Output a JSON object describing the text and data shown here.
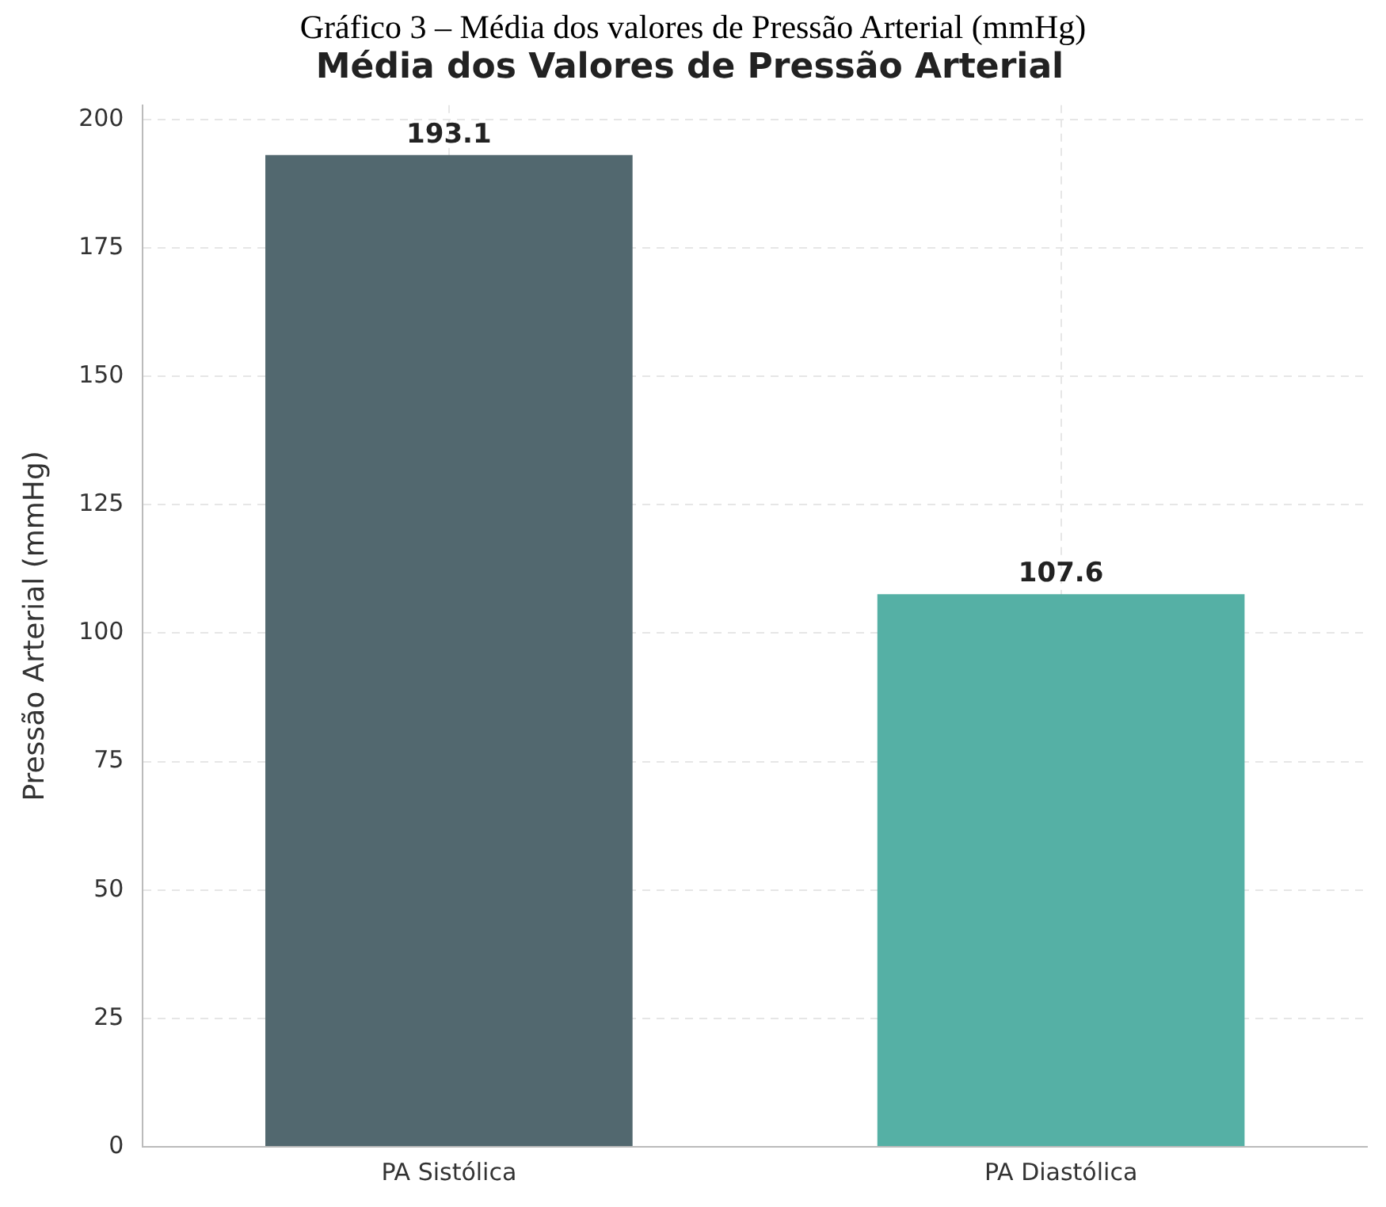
{
  "chart_data": {
    "type": "bar",
    "title": "Média dos Valores de Pressão Arterial",
    "ylabel": "Pressão Arterial (mmHg)",
    "annotations": [
      "Gráfico 3 – Média dos valores de Pressão Arterial (mmHg)"
    ],
    "categories": [
      "PA Sistólica",
      "PA Diastólica"
    ],
    "values": [
      193.1,
      107.6
    ],
    "colors": [
      "#52686f",
      "#55b0a5"
    ],
    "ylim": [
      0,
      202.8
    ],
    "yticks": [
      0,
      25,
      50,
      75,
      100,
      125,
      150,
      175,
      200
    ],
    "grid": true,
    "data_labels": true,
    "legend": false
  }
}
